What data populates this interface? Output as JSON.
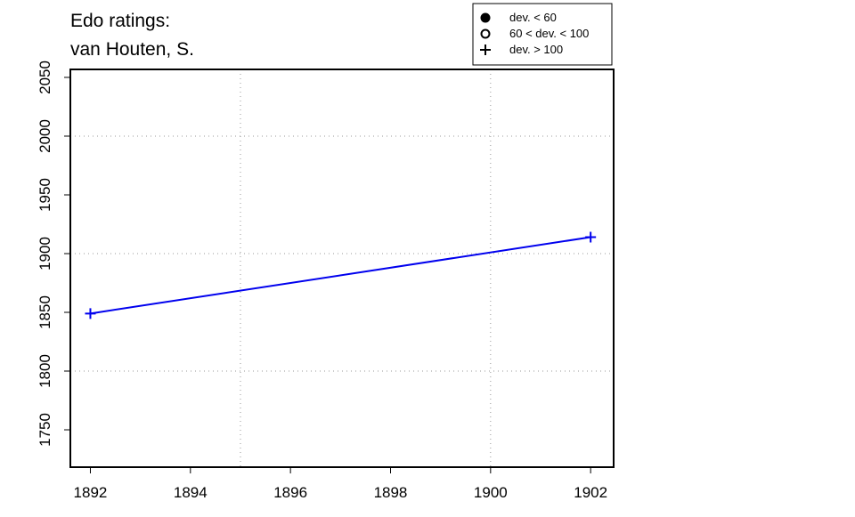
{
  "chart_data": {
    "type": "line",
    "title": "Edo ratings:",
    "subtitle": "van Houten, S.",
    "x": [
      1892,
      1902
    ],
    "series": [
      {
        "color": "#0000ee",
        "symbol": "plus",
        "values": [
          1849,
          1914
        ]
      }
    ],
    "xlim": [
      1891.6,
      1902.46
    ],
    "ylim": [
      1718.2,
      2056.8
    ],
    "xticks": [
      1892,
      1894,
      1896,
      1898,
      1900,
      1902
    ],
    "yticks": [
      1750,
      1800,
      1850,
      1900,
      1950,
      2000,
      2050
    ],
    "grid_x": [
      1895,
      1900
    ],
    "grid_y": [
      1800,
      1900,
      2000
    ],
    "legend": [
      {
        "symbol": "filled-circle",
        "label": "dev. < 60"
      },
      {
        "symbol": "open-circle",
        "label": "60 < dev. < 100"
      },
      {
        "symbol": "plus",
        "label": "dev. > 100"
      }
    ]
  }
}
